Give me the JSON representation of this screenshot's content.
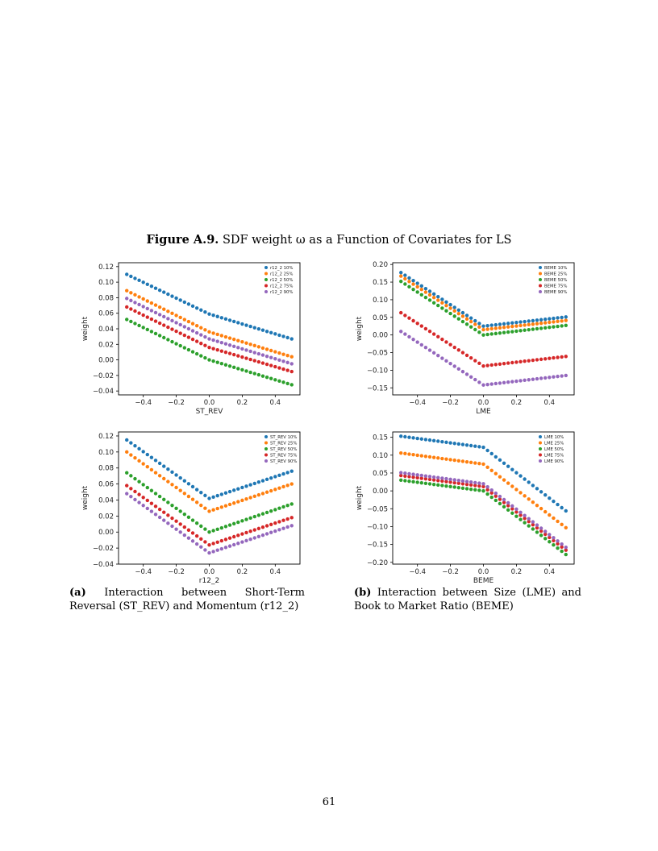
{
  "figure": {
    "label": "Figure A.9.",
    "title": "SDF weight ω as a Function of Covariates for LS"
  },
  "captions": {
    "a_label": "(a)",
    "a_text": "Interaction between Short-Term Reversal (ST_REV) and Momentum (r12_2)",
    "b_label": "(b)",
    "b_text": "Interaction between Size (LME) and Book to Market Ratio (BEME)"
  },
  "page_number": "61",
  "colors": {
    "p10": "#1f77b4",
    "p25": "#ff7f0e",
    "p50": "#2ca02c",
    "p75": "#d62728",
    "p90": "#9467bd"
  },
  "chart_data": [
    {
      "id": "chart-1",
      "type": "scatter",
      "xlabel": "ST_REV",
      "ylabel": "weight",
      "xlim": [
        -0.55,
        0.55
      ],
      "ylim": [
        -0.045,
        0.125
      ],
      "xticks": [
        -0.4,
        -0.2,
        0.0,
        0.2,
        0.4
      ],
      "xtick_labels": [
        "−0.4",
        "−0.2",
        "0.0",
        "0.2",
        "0.4"
      ],
      "yticks": [
        -0.04,
        -0.02,
        0.0,
        0.02,
        0.04,
        0.06,
        0.08,
        0.1,
        0.12
      ],
      "ytick_labels": [
        "−0.04",
        "−0.02",
        "0.00",
        "0.02",
        "0.04",
        "0.06",
        "0.08",
        "0.10",
        "0.12"
      ],
      "x": {
        "start": -0.5,
        "end": 0.5,
        "count": 41
      },
      "legend_position": "top-right",
      "grid": false,
      "series": [
        {
          "name": "r12_2 10%",
          "color_key": "p10",
          "y_at_x": [
            [
              -0.5,
              0.11
            ],
            [
              0.0,
              0.059
            ],
            [
              0.5,
              0.027
            ]
          ]
        },
        {
          "name": "r12_2 25%",
          "color_key": "p25",
          "y_at_x": [
            [
              -0.5,
              0.089
            ],
            [
              0.0,
              0.036
            ],
            [
              0.5,
              0.004
            ]
          ]
        },
        {
          "name": "r12_2 50%",
          "color_key": "p50",
          "y_at_x": [
            [
              -0.5,
              0.052
            ],
            [
              0.0,
              0.0
            ],
            [
              0.5,
              -0.032
            ]
          ]
        },
        {
          "name": "r12_2 75%",
          "color_key": "p75",
          "y_at_x": [
            [
              -0.5,
              0.068
            ],
            [
              0.0,
              0.016
            ],
            [
              0.5,
              -0.015
            ]
          ]
        },
        {
          "name": "r12_2 90%",
          "color_key": "p90",
          "y_at_x": [
            [
              -0.5,
              0.079
            ],
            [
              0.0,
              0.027
            ],
            [
              0.5,
              -0.005
            ]
          ]
        }
      ]
    },
    {
      "id": "chart-2",
      "type": "scatter",
      "xlabel": "LME",
      "ylabel": "weight",
      "xlim": [
        -0.55,
        0.55
      ],
      "ylim": [
        -0.17,
        0.205
      ],
      "xticks": [
        -0.4,
        -0.2,
        0.0,
        0.2,
        0.4
      ],
      "xtick_labels": [
        "−0.4",
        "−0.2",
        "0.0",
        "0.2",
        "0.4"
      ],
      "yticks": [
        -0.15,
        -0.1,
        -0.05,
        0.0,
        0.05,
        0.1,
        0.15,
        0.2
      ],
      "ytick_labels": [
        "−0.15",
        "−0.10",
        "−0.05",
        "0.00",
        "0.05",
        "0.10",
        "0.15",
        "0.20"
      ],
      "x": {
        "start": -0.5,
        "end": 0.5,
        "count": 41
      },
      "legend_position": "top-right",
      "grid": false,
      "series": [
        {
          "name": "BEME 10%",
          "color_key": "p10",
          "y_at_x": [
            [
              -0.5,
              0.177
            ],
            [
              0.0,
              0.025
            ],
            [
              0.5,
              0.051
            ]
          ]
        },
        {
          "name": "BEME 25%",
          "color_key": "p25",
          "y_at_x": [
            [
              -0.5,
              0.167
            ],
            [
              0.0,
              0.015
            ],
            [
              0.5,
              0.041
            ]
          ]
        },
        {
          "name": "BEME 50%",
          "color_key": "p50",
          "y_at_x": [
            [
              -0.5,
              0.152
            ],
            [
              0.0,
              0.0
            ],
            [
              0.5,
              0.027
            ]
          ]
        },
        {
          "name": "BEME 75%",
          "color_key": "p75",
          "y_at_x": [
            [
              -0.5,
              0.063
            ],
            [
              0.0,
              -0.088
            ],
            [
              0.5,
              -0.061
            ]
          ]
        },
        {
          "name": "BEME 90%",
          "color_key": "p90",
          "y_at_x": [
            [
              -0.5,
              0.01
            ],
            [
              0.0,
              -0.142
            ],
            [
              0.5,
              -0.115
            ]
          ]
        }
      ]
    },
    {
      "id": "chart-3",
      "type": "scatter",
      "xlabel": "r12_2",
      "ylabel": "weight",
      "xlim": [
        -0.55,
        0.55
      ],
      "ylim": [
        -0.04,
        0.125
      ],
      "xticks": [
        -0.4,
        -0.2,
        0.0,
        0.2,
        0.4
      ],
      "xtick_labels": [
        "−0.4",
        "−0.2",
        "0.0",
        "0.2",
        "0.4"
      ],
      "yticks": [
        -0.04,
        -0.02,
        0.0,
        0.02,
        0.04,
        0.06,
        0.08,
        0.1,
        0.12
      ],
      "ytick_labels": [
        "−0.04",
        "−0.02",
        "0.00",
        "0.02",
        "0.04",
        "0.06",
        "0.08",
        "0.10",
        "0.12"
      ],
      "x": {
        "start": -0.5,
        "end": 0.5,
        "count": 41
      },
      "legend_position": "top-right",
      "grid": false,
      "series": [
        {
          "name": "ST_REV 10%",
          "color_key": "p10",
          "y_at_x": [
            [
              -0.5,
              0.115
            ],
            [
              0.0,
              0.042
            ],
            [
              0.5,
              0.076
            ]
          ]
        },
        {
          "name": "ST_REV 25%",
          "color_key": "p25",
          "y_at_x": [
            [
              -0.5,
              0.1
            ],
            [
              0.0,
              0.026
            ],
            [
              0.5,
              0.06
            ]
          ]
        },
        {
          "name": "ST_REV 50%",
          "color_key": "p50",
          "y_at_x": [
            [
              -0.5,
              0.074
            ],
            [
              0.0,
              0.0
            ],
            [
              0.5,
              0.035
            ]
          ]
        },
        {
          "name": "ST_REV 75%",
          "color_key": "p75",
          "y_at_x": [
            [
              -0.5,
              0.058
            ],
            [
              0.0,
              -0.016
            ],
            [
              0.5,
              0.018
            ]
          ]
        },
        {
          "name": "ST_REV 90%",
          "color_key": "p90",
          "y_at_x": [
            [
              -0.5,
              0.048
            ],
            [
              0.0,
              -0.026
            ],
            [
              0.5,
              0.008
            ]
          ]
        }
      ]
    },
    {
      "id": "chart-4",
      "type": "scatter",
      "xlabel": "BEME",
      "ylabel": "weight",
      "xlim": [
        -0.55,
        0.55
      ],
      "ylim": [
        -0.205,
        0.165
      ],
      "xticks": [
        -0.4,
        -0.2,
        0.0,
        0.2,
        0.4
      ],
      "xtick_labels": [
        "−0.4",
        "−0.2",
        "0.0",
        "0.2",
        "0.4"
      ],
      "yticks": [
        -0.2,
        -0.15,
        -0.1,
        -0.05,
        0.0,
        0.05,
        0.1,
        0.15
      ],
      "ytick_labels": [
        "−0.20",
        "−0.15",
        "−0.10",
        "−0.05",
        "0.00",
        "0.05",
        "0.10",
        "0.15"
      ],
      "x": {
        "start": -0.5,
        "end": 0.5,
        "count": 41
      },
      "legend_position": "top-right",
      "grid": false,
      "series": [
        {
          "name": "LME 10%",
          "color_key": "p10",
          "y_at_x": [
            [
              -0.5,
              0.153
            ],
            [
              0.0,
              0.122
            ],
            [
              0.5,
              -0.056
            ]
          ]
        },
        {
          "name": "LME 25%",
          "color_key": "p25",
          "y_at_x": [
            [
              -0.5,
              0.106
            ],
            [
              0.0,
              0.075
            ],
            [
              0.5,
              -0.103
            ]
          ]
        },
        {
          "name": "LME 50%",
          "color_key": "p50",
          "y_at_x": [
            [
              -0.5,
              0.03
            ],
            [
              0.0,
              0.0
            ],
            [
              0.5,
              -0.178
            ]
          ]
        },
        {
          "name": "LME 75%",
          "color_key": "p75",
          "y_at_x": [
            [
              -0.5,
              0.043
            ],
            [
              0.0,
              0.012
            ],
            [
              0.5,
              -0.166
            ]
          ]
        },
        {
          "name": "LME 90%",
          "color_key": "p90",
          "y_at_x": [
            [
              -0.5,
              0.051
            ],
            [
              0.0,
              0.02
            ],
            [
              0.5,
              -0.158
            ]
          ]
        }
      ]
    }
  ]
}
